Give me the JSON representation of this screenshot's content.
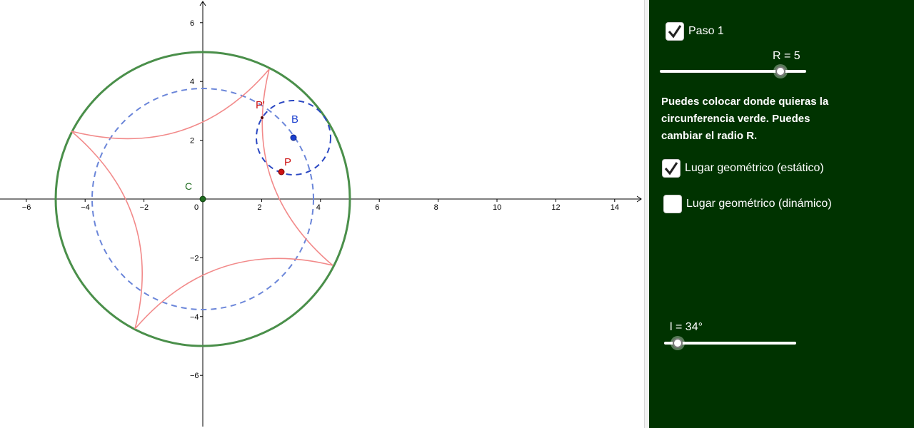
{
  "graph": {
    "axis_ticks_x": [
      "−6",
      "−4",
      "−2",
      "0",
      "2",
      "4",
      "6",
      "8",
      "10",
      "12",
      "14"
    ],
    "axis_ticks_y": [
      "6",
      "4",
      "2",
      "−2",
      "−4",
      "−6"
    ],
    "points": {
      "center": {
        "label": "C",
        "x": 0,
        "y": 0
      },
      "b": {
        "label": "B",
        "x": 3.1,
        "y": 2.1
      },
      "p": {
        "label": "P",
        "x": 2.7,
        "y": 0.95
      },
      "p_prime": {
        "label": "P'",
        "x": 2.05,
        "y": 2.75
      }
    },
    "green_circle_radius": 5,
    "blue_dashed_radius": 3.75,
    "small_dashed_radius": 1.25,
    "colors": {
      "green": "#4a8f4a",
      "blue": "#5b79d6",
      "red": "#f08080",
      "point_red": "#cc0000",
      "point_blue": "#1a3fcf"
    }
  },
  "panel": {
    "paso1": {
      "label": "Paso 1",
      "checked": true
    },
    "slider_r": {
      "label": "R = 5",
      "value": 5
    },
    "info": "Puedes colocar donde quieras la circunferencia verde. Puedes cambiar el radio R.",
    "locus_static": {
      "label": "Lugar geométrico (estático)",
      "checked": true
    },
    "locus_dynamic": {
      "label": "Lugar geométrico (dinámico)",
      "checked": false
    },
    "slider_l": {
      "label": "l = 34°",
      "value": 34
    }
  }
}
